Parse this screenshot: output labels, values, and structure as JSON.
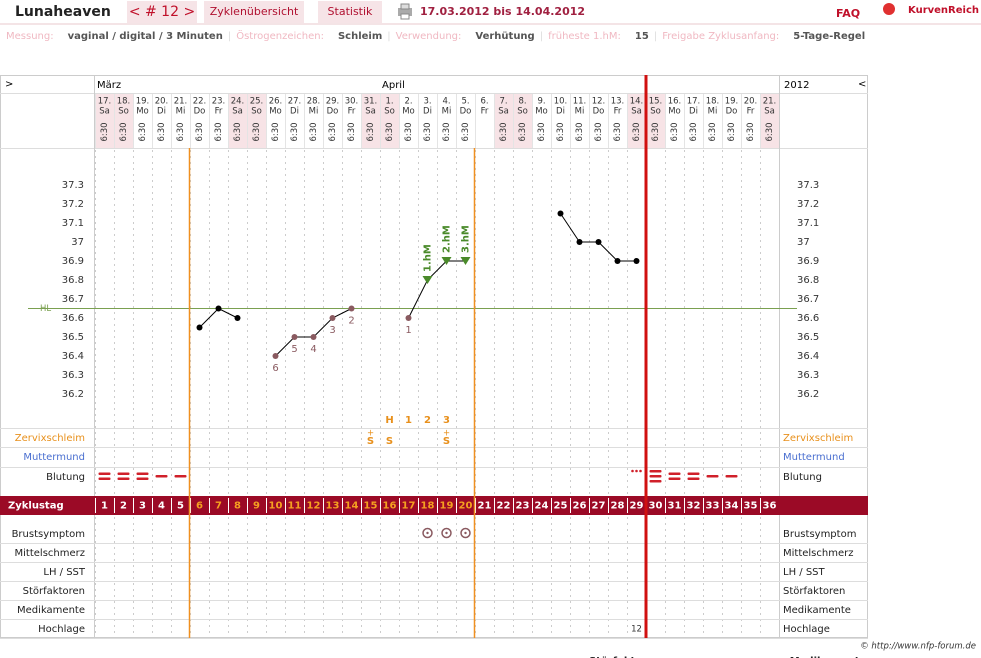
{
  "header": {
    "user": "Lunaheaven",
    "cycle_nav": "< # 12 >",
    "tabs": [
      "Zyklenübersicht",
      "Statistik"
    ],
    "date_range": "17.03.2012 bis 14.04.2012",
    "faq": "FAQ",
    "brand": "KurvenReich"
  },
  "info": {
    "separator": "|",
    "items": [
      {
        "label": "Messung:",
        "value": "vaginal / digital / 3 Minuten"
      },
      {
        "label": "Östrogenzeichen:",
        "value": "Schleim"
      },
      {
        "label": "Verwendung:",
        "value": "Verhütung"
      },
      {
        "label": "früheste 1.hM:",
        "value": "15"
      },
      {
        "label": "Freigabe Zyklusanfang:",
        "value": "5-Tage-Regel"
      }
    ]
  },
  "grid": {
    "nav_left": ">",
    "nav_right": "<",
    "year": "2012",
    "months": [
      "März",
      "April"
    ],
    "dates": [
      "17.",
      "18.",
      "19.",
      "20.",
      "21.",
      "22.",
      "23.",
      "24.",
      "25.",
      "26.",
      "27.",
      "28.",
      "29.",
      "30.",
      "31.",
      "1.",
      "2.",
      "3.",
      "4.",
      "5.",
      "6.",
      "7.",
      "8.",
      "9.",
      "10.",
      "11.",
      "12.",
      "13.",
      "14.",
      "15.",
      "16.",
      "17.",
      "18.",
      "19.",
      "20.",
      "21."
    ],
    "weekdays": [
      "Sa",
      "So",
      "Mo",
      "Di",
      "Mi",
      "Do",
      "Fr",
      "Sa",
      "So",
      "Mo",
      "Di",
      "Mi",
      "Do",
      "Fr",
      "Sa",
      "So",
      "Mo",
      "Di",
      "Mi",
      "Do",
      "Fr",
      "Sa",
      "So",
      "Mo",
      "Di",
      "Mi",
      "Do",
      "Fr",
      "Sa",
      "So",
      "Mo",
      "Di",
      "Mi",
      "Do",
      "Fr",
      "Sa"
    ],
    "times": [
      "6:30",
      "6:30",
      "6:30",
      "6:30",
      "6:30",
      "6:30",
      "6:30",
      "6:30",
      "6:30",
      "6:30",
      "6:30",
      "6:30",
      "6:30",
      "6:30",
      "6:30",
      "6:30",
      "6:30",
      "6:30",
      "6:30",
      "6:30",
      null,
      "6:30",
      "6:30",
      "6:30",
      "6:30",
      "6:30",
      "6:30",
      "6:30",
      "6:30",
      "6:30",
      "6:30",
      "6:30",
      "6:30",
      "6:30",
      "6:30",
      "6:30"
    ]
  },
  "temperature": {
    "ylim": [
      36.0,
      37.5
    ],
    "yticks": [
      37.3,
      37.2,
      37.1,
      {
        "value": 37,
        "label": "37"
      },
      36.9,
      36.8,
      36.7,
      36.6,
      36.5,
      36.4,
      36.3,
      36.2
    ],
    "hl": {
      "label": "HL",
      "value": 36.65
    },
    "values": [
      null,
      null,
      null,
      null,
      null,
      36.55,
      36.65,
      36.6,
      null,
      36.4,
      36.5,
      36.5,
      36.6,
      36.65,
      null,
      null,
      36.6,
      36.8,
      36.9,
      36.9,
      null,
      null,
      null,
      null,
      37.15,
      37.0,
      37.0,
      36.9,
      36.9,
      null,
      null,
      null,
      null,
      null,
      null,
      null
    ],
    "point_labels": [
      null,
      null,
      null,
      null,
      null,
      null,
      null,
      null,
      null,
      "6",
      "5",
      "4",
      "3",
      "2",
      null,
      null,
      "1",
      null,
      null,
      null,
      null,
      null,
      null,
      null,
      null,
      null,
      null,
      null,
      null,
      null,
      null,
      null,
      null,
      null,
      null,
      null
    ],
    "hm_labels": [
      null,
      null,
      null,
      null,
      null,
      null,
      null,
      null,
      null,
      null,
      null,
      null,
      null,
      null,
      null,
      null,
      null,
      "1.hM",
      "2.hM",
      "3.hM",
      null,
      null,
      null,
      null,
      null,
      null,
      null,
      null,
      null,
      null,
      null,
      null,
      null,
      null,
      null,
      null
    ]
  },
  "peak_row": [
    null,
    null,
    null,
    null,
    null,
    null,
    null,
    null,
    null,
    null,
    null,
    null,
    null,
    null,
    null,
    "H",
    "1",
    "2",
    "3",
    null,
    null,
    null,
    null,
    null,
    null,
    null,
    null,
    null,
    null,
    null,
    null,
    null,
    null,
    null,
    null,
    null
  ],
  "zervix": [
    null,
    null,
    null,
    null,
    null,
    null,
    null,
    null,
    null,
    null,
    null,
    null,
    null,
    null,
    "S",
    "S",
    null,
    null,
    "S",
    null,
    null,
    null,
    null,
    null,
    null,
    null,
    null,
    null,
    null,
    null,
    null,
    null,
    null,
    null,
    null,
    null
  ],
  "zervix_plus": [
    null,
    null,
    null,
    null,
    null,
    null,
    null,
    null,
    null,
    null,
    null,
    null,
    null,
    null,
    "+",
    null,
    null,
    null,
    "+",
    null,
    null,
    null,
    null,
    null,
    null,
    null,
    null,
    null,
    null,
    null,
    null,
    null,
    null,
    null,
    null,
    null
  ],
  "rows_top": [
    "Zervixschleim",
    "Muttermund",
    "Blutung"
  ],
  "cycle_label": "Zyklustag",
  "cycle_days": [
    1,
    2,
    3,
    4,
    5,
    6,
    7,
    8,
    9,
    10,
    11,
    12,
    13,
    14,
    15,
    16,
    17,
    18,
    19,
    20,
    21,
    22,
    23,
    24,
    25,
    26,
    27,
    28,
    29,
    30,
    31,
    32,
    33,
    34,
    35,
    36
  ],
  "rows_bottom": [
    "Brustsymptom",
    "Mittelschmerz",
    "LH / SST",
    "Störfaktoren",
    "Medikamente",
    "Hochlage"
  ],
  "hochlage": [
    null,
    null,
    null,
    null,
    null,
    null,
    null,
    null,
    null,
    null,
    null,
    null,
    null,
    null,
    null,
    null,
    null,
    null,
    null,
    null,
    null,
    null,
    null,
    null,
    null,
    null,
    null,
    null,
    12,
    null,
    null,
    null,
    null,
    null,
    null,
    null
  ],
  "footer": {
    "copyright": "© http://www.nfp-forum.de",
    "cut_labels": [
      "Störfaktoren",
      "Medikamente"
    ]
  }
}
